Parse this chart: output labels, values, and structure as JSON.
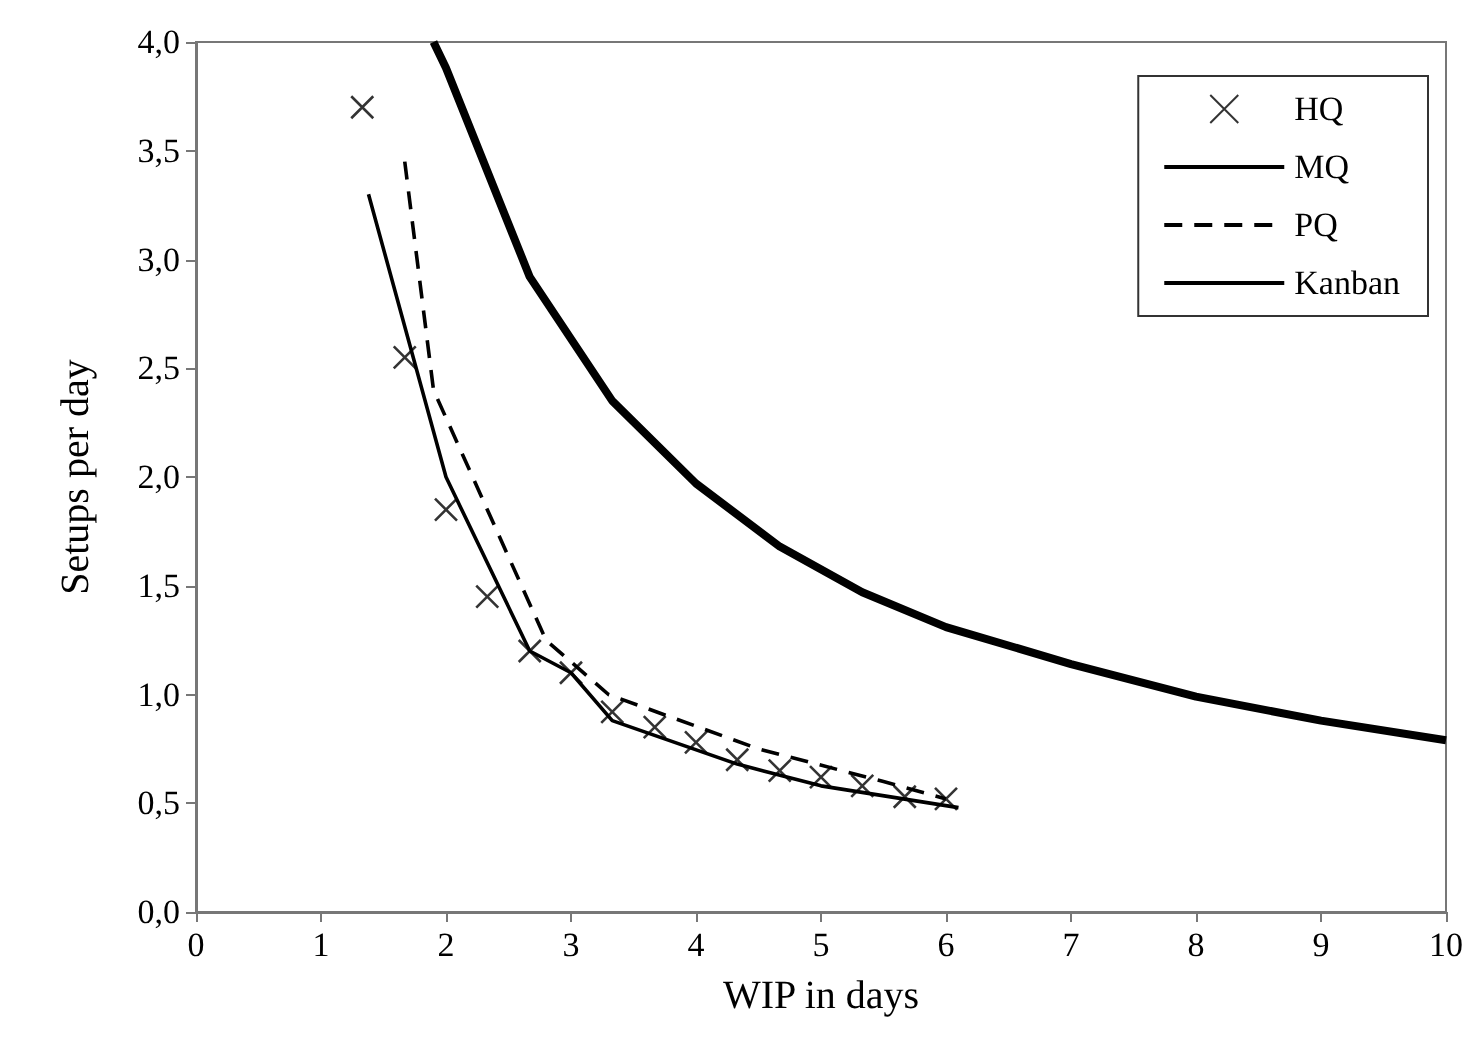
{
  "chart_data": {
    "type": "line",
    "xlabel": "WIP in days",
    "ylabel": "Setups per day",
    "xlim": [
      0,
      10
    ],
    "xticks": [
      0,
      1,
      2,
      3,
      4,
      5,
      6,
      7,
      8,
      9,
      10
    ],
    "ylim": [
      0,
      4
    ],
    "yticks": [
      {
        "value": 0,
        "label": "0,0"
      },
      {
        "value": 0.5,
        "label": "0,5"
      },
      {
        "value": 1,
        "label": "1,0"
      },
      {
        "value": 1.5,
        "label": "1,5"
      },
      {
        "value": 2,
        "label": "2,0"
      },
      {
        "value": 2.5,
        "label": "2,5"
      },
      {
        "value": 3,
        "label": "3,0"
      },
      {
        "value": 3.5,
        "label": "3,5"
      },
      {
        "value": 4,
        "label": "4,0"
      }
    ],
    "grid": false,
    "legend": "top right",
    "series": [
      {
        "name": "HQ",
        "type": "scatter",
        "marker": "cross",
        "color": "#000000",
        "x": [
          1.33,
          1.67,
          2.0,
          2.33,
          2.67,
          3.0,
          3.33,
          3.67,
          4.0,
          4.33,
          4.67,
          5.0,
          5.33,
          5.67,
          6.0
        ],
        "values": [
          3.7,
          2.55,
          1.85,
          1.45,
          1.2,
          1.1,
          0.92,
          0.85,
          0.78,
          0.7,
          0.65,
          0.62,
          0.58,
          0.53,
          0.52
        ]
      },
      {
        "name": "MQ",
        "line_style": "solid",
        "color": "#000000",
        "x": [
          1.38,
          2.0,
          2.67,
          3.0,
          3.33,
          4.33,
          5.0,
          6.1
        ],
        "values": [
          3.3,
          2.0,
          1.2,
          1.1,
          0.88,
          0.68,
          0.58,
          0.48
        ]
      },
      {
        "name": "PQ",
        "line_style": "dashed",
        "color": "#000000",
        "x": [
          1.67,
          1.9,
          2.8,
          3.3,
          4.5,
          5.5,
          6.0
        ],
        "values": [
          3.45,
          2.4,
          1.25,
          1.0,
          0.75,
          0.6,
          0.52
        ]
      },
      {
        "name": "Kanban",
        "line_style": "solid",
        "color": "#000000",
        "x": [
          1.9,
          2.0,
          2.67,
          3.33,
          4.0,
          4.67,
          5.33,
          6.0,
          7.0,
          8.0,
          9.0,
          10.0
        ],
        "values": [
          4.0,
          3.88,
          2.92,
          2.35,
          1.97,
          1.68,
          1.47,
          1.31,
          1.14,
          0.99,
          0.88,
          0.79
        ]
      }
    ]
  }
}
